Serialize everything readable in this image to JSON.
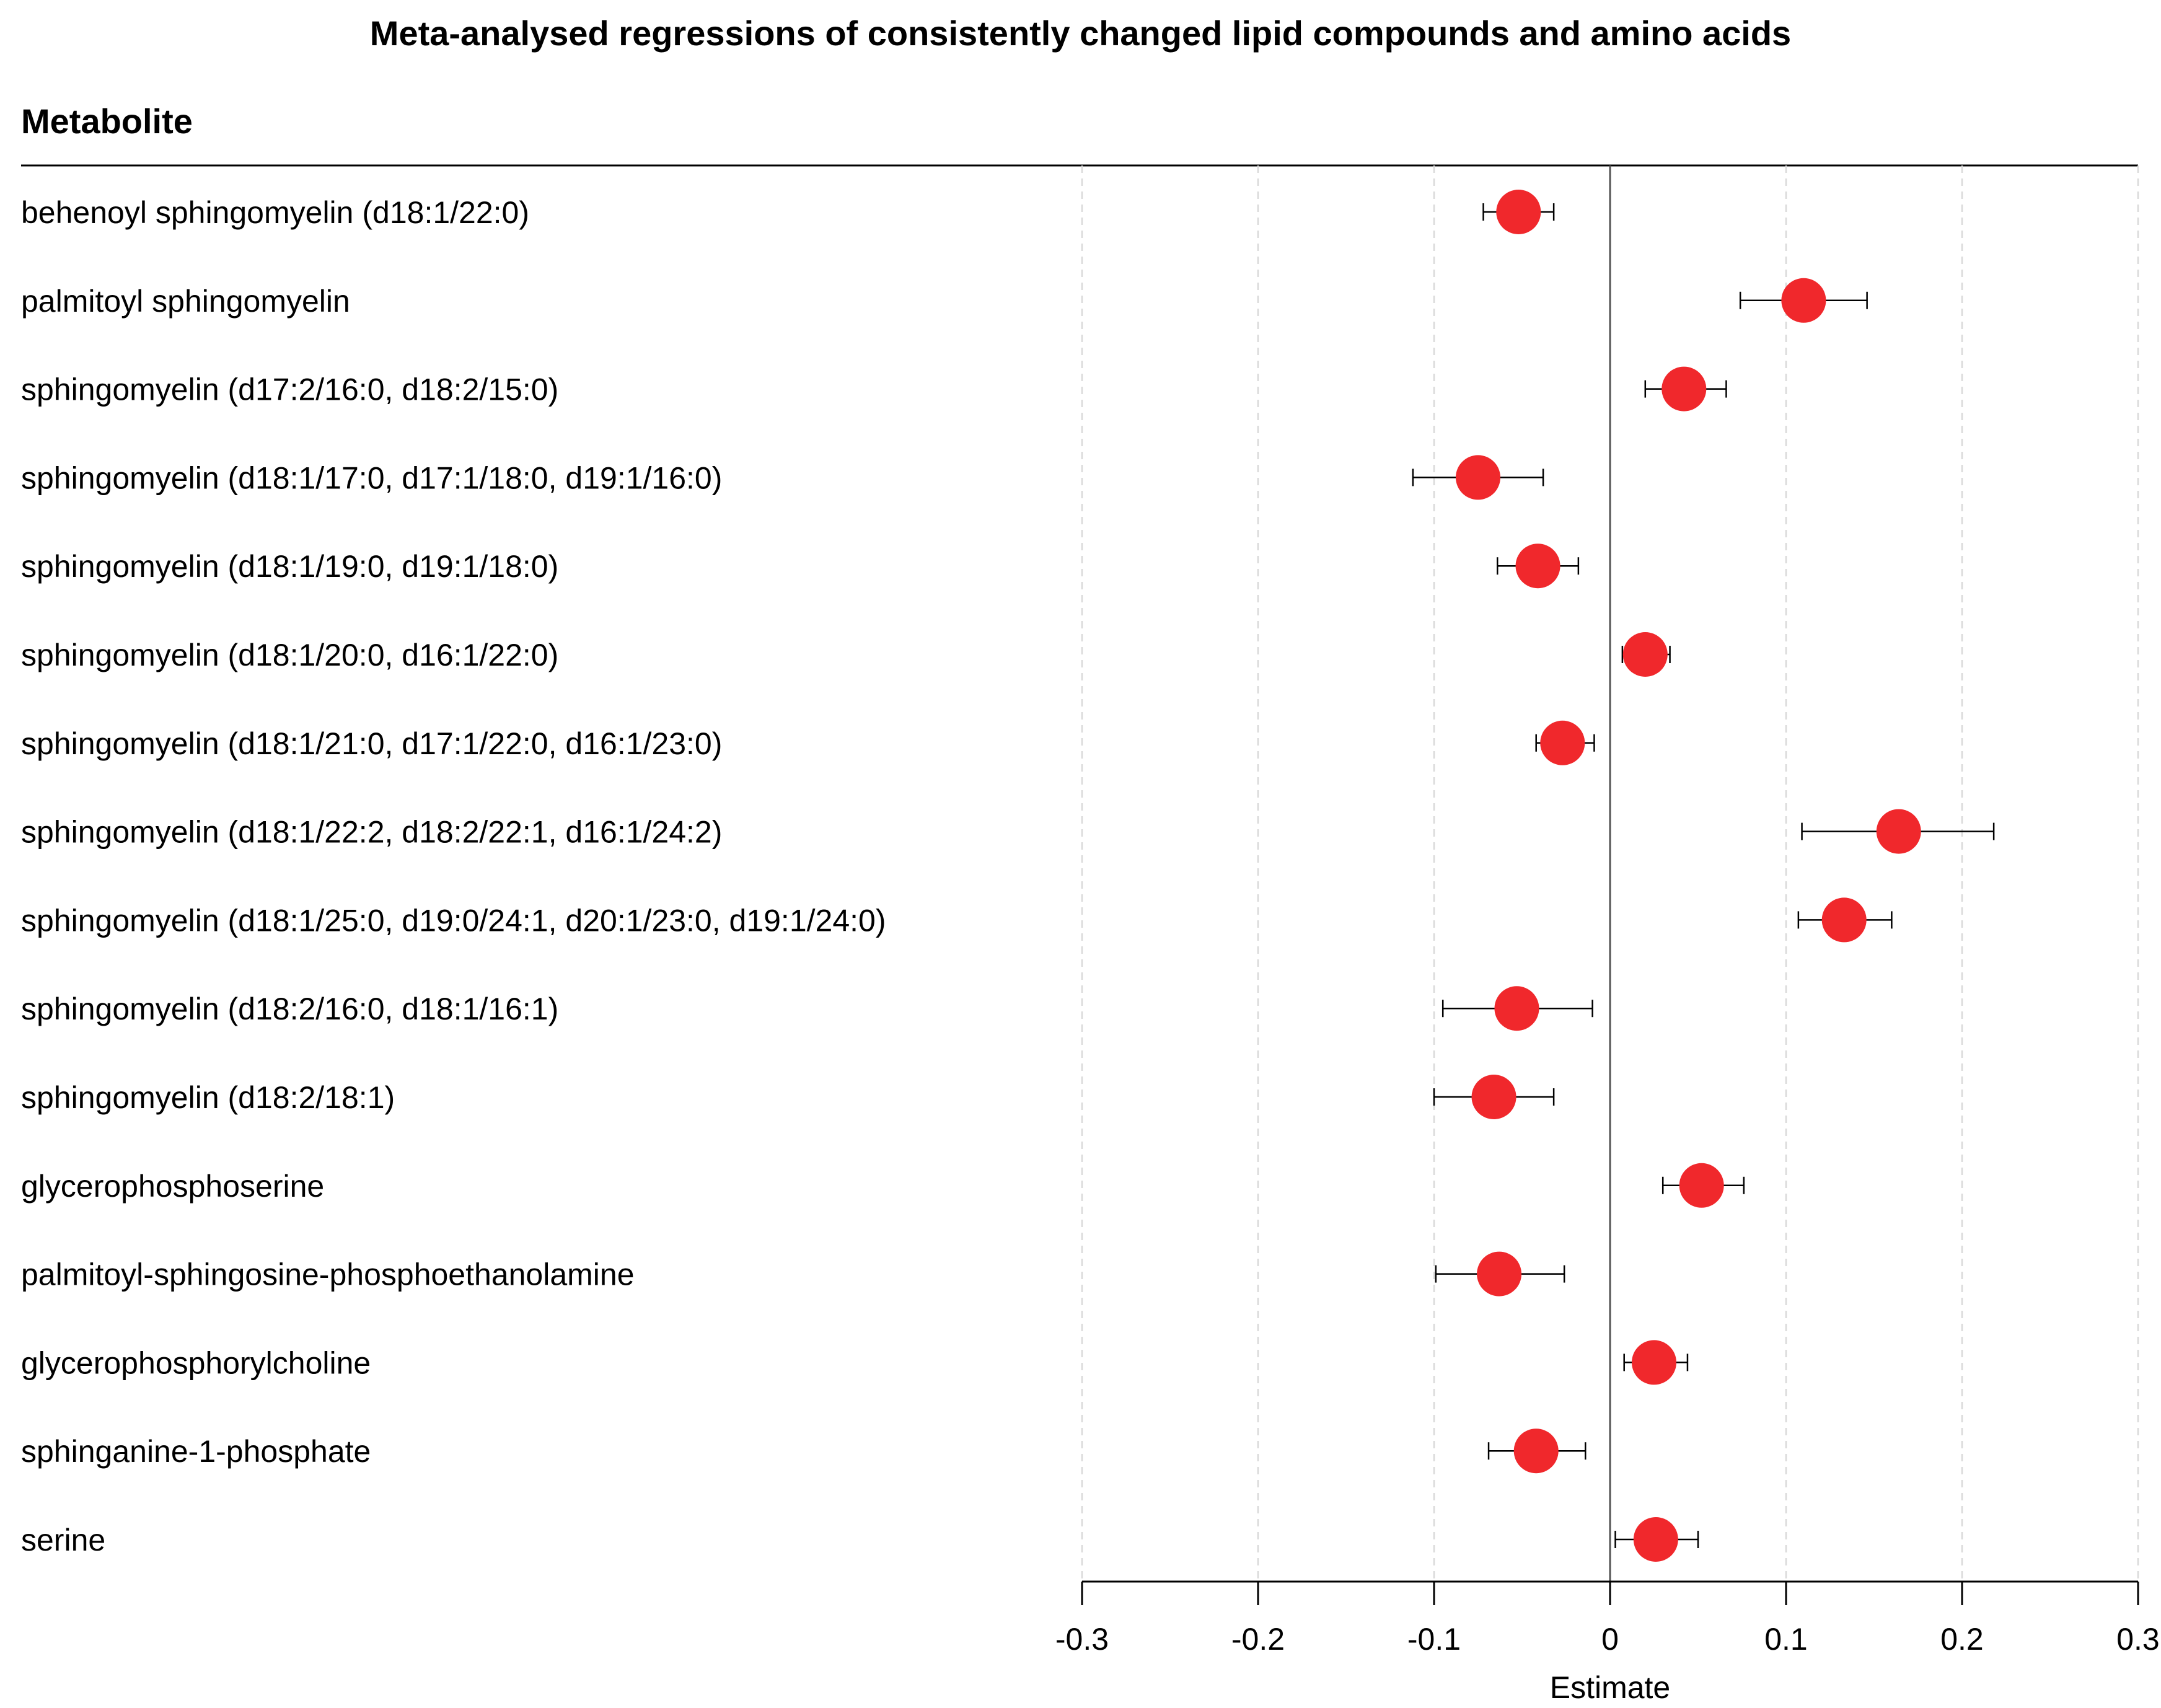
{
  "chart_data": {
    "type": "forest",
    "title": "Meta-analysed regressions of consistently changed lipid compounds and amino acids",
    "column_header": "Metabolite",
    "xlabel": "Estimate",
    "xlim": [
      -0.3,
      0.3
    ],
    "xticks": [
      -0.3,
      -0.2,
      -0.1,
      0,
      0.1,
      0.2,
      0.3
    ],
    "xtick_labels": [
      "-0.3",
      "-0.2",
      "-0.1",
      "0",
      "0.1",
      "0.2",
      "0.3"
    ],
    "reference_line": 0,
    "grid": "vertical dashed",
    "point_color": "#f0282c",
    "rows": [
      {
        "label": "behenoyl sphingomyelin (d18:1/22:0)",
        "estimate": -0.052,
        "lower": -0.072,
        "upper": -0.032
      },
      {
        "label": "palmitoyl sphingomyelin",
        "estimate": 0.11,
        "lower": 0.074,
        "upper": 0.146
      },
      {
        "label": "sphingomyelin (d17:2/16:0, d18:2/15:0)",
        "estimate": 0.042,
        "lower": 0.02,
        "upper": 0.066
      },
      {
        "label": "sphingomyelin (d18:1/17:0, d17:1/18:0, d19:1/16:0)",
        "estimate": -0.075,
        "lower": -0.112,
        "upper": -0.038
      },
      {
        "label": "sphingomyelin (d18:1/19:0, d19:1/18:0)",
        "estimate": -0.041,
        "lower": -0.064,
        "upper": -0.018
      },
      {
        "label": "sphingomyelin (d18:1/20:0, d16:1/22:0)",
        "estimate": 0.02,
        "lower": 0.007,
        "upper": 0.034
      },
      {
        "label": "sphingomyelin (d18:1/21:0, d17:1/22:0, d16:1/23:0)",
        "estimate": -0.027,
        "lower": -0.042,
        "upper": -0.009
      },
      {
        "label": "sphingomyelin (d18:1/22:2, d18:2/22:1, d16:1/24:2)",
        "estimate": 0.164,
        "lower": 0.109,
        "upper": 0.218
      },
      {
        "label": "sphingomyelin (d18:1/25:0, d19:0/24:1, d20:1/23:0, d19:1/24:0)",
        "estimate": 0.133,
        "lower": 0.107,
        "upper": 0.16
      },
      {
        "label": "sphingomyelin (d18:2/16:0, d18:1/16:1)",
        "estimate": -0.053,
        "lower": -0.095,
        "upper": -0.01
      },
      {
        "label": "sphingomyelin (d18:2/18:1)",
        "estimate": -0.066,
        "lower": -0.1,
        "upper": -0.032
      },
      {
        "label": "glycerophosphoserine",
        "estimate": 0.052,
        "lower": 0.03,
        "upper": 0.076
      },
      {
        "label": "palmitoyl-sphingosine-phosphoethanolamine",
        "estimate": -0.063,
        "lower": -0.099,
        "upper": -0.026
      },
      {
        "label": "glycerophosphorylcholine",
        "estimate": 0.025,
        "lower": 0.008,
        "upper": 0.044
      },
      {
        "label": "sphinganine-1-phosphate",
        "estimate": -0.042,
        "lower": -0.069,
        "upper": -0.014
      },
      {
        "label": "serine",
        "estimate": 0.026,
        "lower": 0.003,
        "upper": 0.05
      }
    ]
  }
}
